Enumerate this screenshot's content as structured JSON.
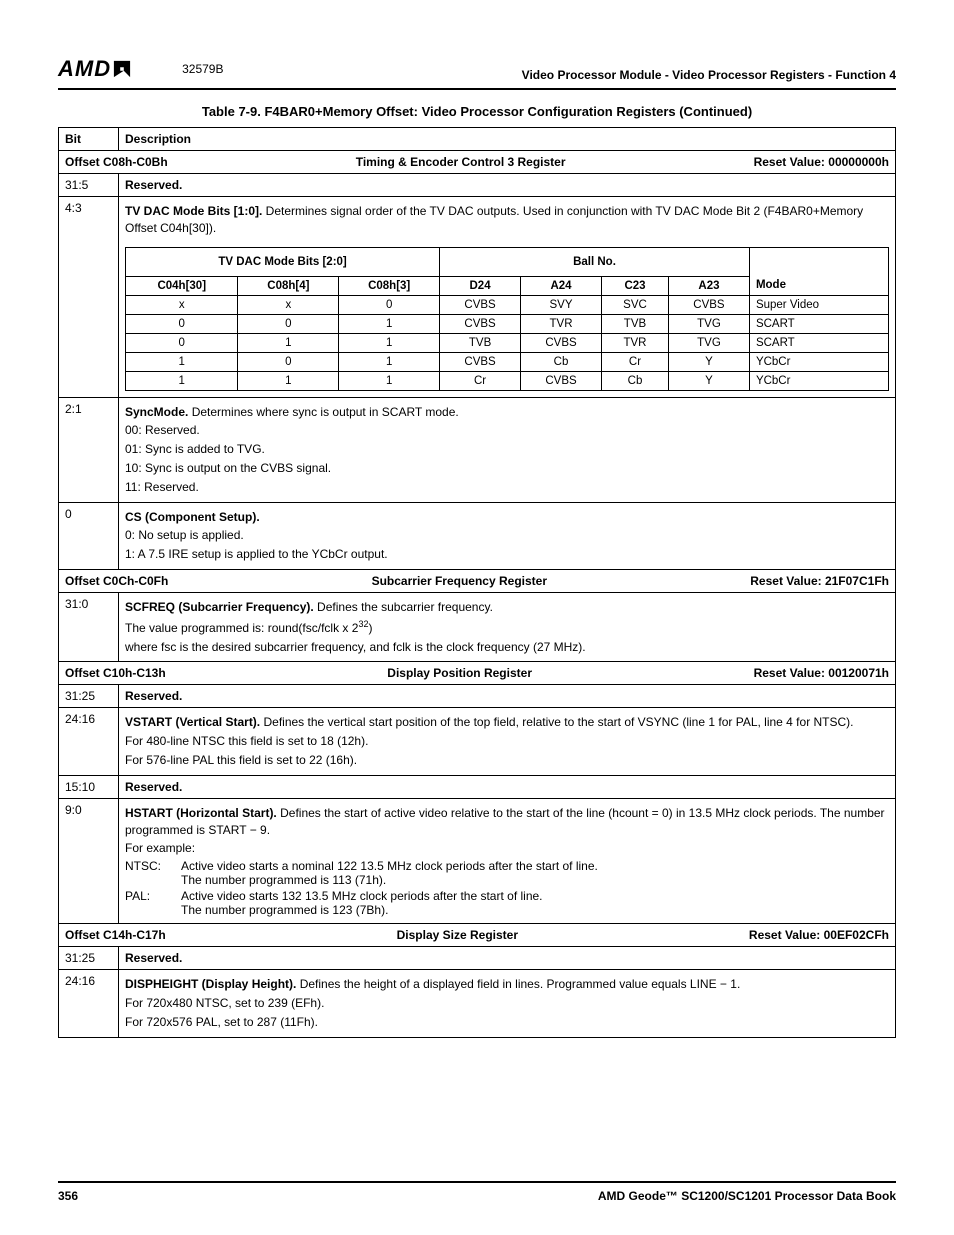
{
  "header": {
    "logo": "AMD",
    "doc_number": "32579B",
    "section_title": "Video Processor Module - Video Processor Registers - Function 4"
  },
  "table_title": "Table 7-9.  F4BAR0+Memory Offset: Video Processor Configuration Registers (Continued)",
  "columns": {
    "bit": "Bit",
    "description": "Description"
  },
  "offsets": {
    "c08": {
      "range": "Offset C08h-C0Bh",
      "name": "Timing & Encoder Control 3 Register",
      "reset": "Reset Value: 00000000h"
    },
    "c0c": {
      "range": "Offset C0Ch-C0Fh",
      "name": "Subcarrier Frequency Register",
      "reset": "Reset Value: 21F07C1Fh"
    },
    "c10": {
      "range": "Offset C10h-C13h",
      "name": "Display Position Register",
      "reset": "Reset Value: 00120071h"
    },
    "c14": {
      "range": "Offset C14h-C17h",
      "name": "Display Size Register",
      "reset": "Reset Value: 00EF02CFh"
    }
  },
  "rows": {
    "c08_315": {
      "bit": "31:5",
      "text": "Reserved."
    },
    "c08_43": {
      "bit": "4:3",
      "lead_bold": "TV DAC Mode Bits [1:0].",
      "lead_rest": " Determines signal order of the TV DAC outputs. Used in conjunction with TV DAC Mode Bit 2 (F4BAR0+Memory Offset C04h[30])."
    },
    "c08_21": {
      "bit": "2:1",
      "lead_bold": "SyncMode.",
      "lead_rest": " Determines where sync is output in SCART mode.",
      "lines": [
        "00:  Reserved.",
        "01:  Sync is added to TVG.",
        "10:  Sync is output on the CVBS signal.",
        "11:  Reserved."
      ]
    },
    "c08_0": {
      "bit": "0",
      "lead_bold": "CS (Component Setup).",
      "lines": [
        "0:  No setup is applied.",
        "1:  A 7.5 IRE setup is applied to the YCbCr output."
      ]
    },
    "c0c_310": {
      "bit": "31:0",
      "lead_bold": "SCFREQ (Subcarrier Frequency).",
      "lead_rest": " Defines the subcarrier frequency.",
      "line2_pre": "The value programmed is: round(fsc/fclk x 2",
      "line2_sup": "32",
      "line2_post": ")",
      "line3": "where fsc is the desired subcarrier frequency, and fclk is the clock frequency (27 MHz)."
    },
    "c10_3125": {
      "bit": "31:25",
      "text": "Reserved."
    },
    "c10_2416": {
      "bit": "24:16",
      "lead_bold": "VSTART (Vertical Start).",
      "lead_rest": " Defines the vertical start position of the top field, relative to the start of VSYNC (line 1 for PAL, line 4 for NTSC).",
      "line2": "For 480-line NTSC this field is set to 18 (12h).",
      "line3": "For 576-line PAL this field is set to 22 (16h)."
    },
    "c10_1510": {
      "bit": "15:10",
      "text": "Reserved."
    },
    "c10_90": {
      "bit": "9:0",
      "lead_bold": "HSTART (Horizontal Start).",
      "lead_rest": " Defines the start of active video relative to the start of the line (hcount = 0) in 13.5 MHz clock periods. The number programmed is START − 9.",
      "example_intro": "For example:",
      "ntsc_label": "NTSC:",
      "ntsc_l1": "Active video starts a nominal 122 13.5 MHz clock periods after the start of line.",
      "ntsc_l2": "The number programmed is 113 (71h).",
      "pal_label": "PAL:",
      "pal_l1": "Active video starts 132 13.5 MHz clock periods after the start of line.",
      "pal_l2": "The number programmed is 123 (7Bh)."
    },
    "c14_3125": {
      "bit": "31:25",
      "text": "Reserved."
    },
    "c14_2416": {
      "bit": "24:16",
      "lead_bold": "DISPHEIGHT (Display Height).",
      "lead_rest": " Defines the height of a displayed field in lines. Programmed value equals LINE − 1.",
      "line2": "For 720x480 NTSC, set to 239 (EFh).",
      "line3": "For 720x576 PAL, set to 287 (11Fh)."
    }
  },
  "inner": {
    "group1": "TV DAC Mode Bits [2:0]",
    "group2": "Ball No.",
    "headers": [
      "C04h[30]",
      "C08h[4]",
      "C08h[3]",
      "D24",
      "A24",
      "C23",
      "A23",
      "Mode"
    ],
    "rows": [
      [
        "x",
        "x",
        "0",
        "CVBS",
        "SVY",
        "SVC",
        "CVBS",
        "Super Video"
      ],
      [
        "0",
        "0",
        "1",
        "CVBS",
        "TVR",
        "TVB",
        "TVG",
        "SCART"
      ],
      [
        "0",
        "1",
        "1",
        "TVB",
        "CVBS",
        "TVR",
        "TVG",
        "SCART"
      ],
      [
        "1",
        "0",
        "1",
        "CVBS",
        "Cb",
        "Cr",
        "Y",
        "YCbCr"
      ],
      [
        "1",
        "1",
        "1",
        "Cr",
        "CVBS",
        "Cb",
        "Y",
        "YCbCr"
      ]
    ]
  },
  "footer": {
    "page": "356",
    "book": "AMD Geode™ SC1200/SC1201 Processor Data Book"
  }
}
